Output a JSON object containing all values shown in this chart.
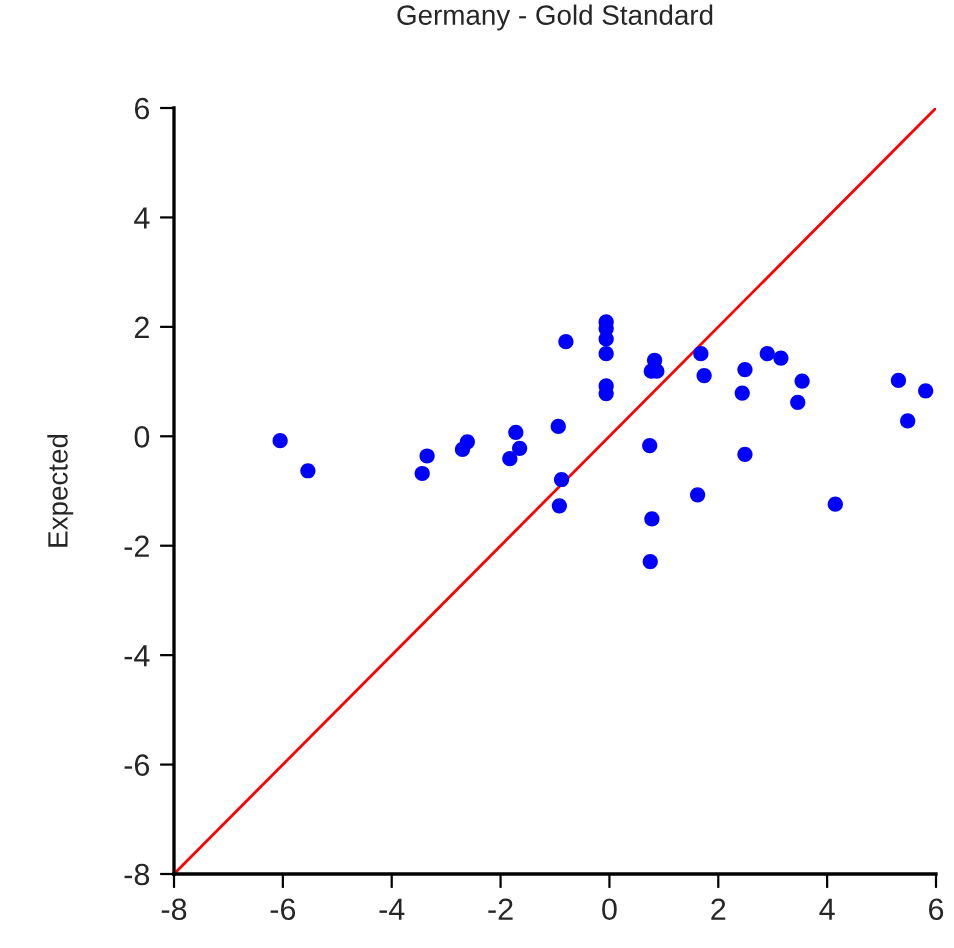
{
  "chart_data": {
    "type": "scatter",
    "title": "Germany - Gold Standard",
    "ylabel": "Expected",
    "xlim": [
      -8,
      6
    ],
    "ylim": [
      -8,
      6
    ],
    "xticks": [
      -8,
      -6,
      -4,
      -2,
      0,
      2,
      4,
      6
    ],
    "yticks": [
      -8,
      -6,
      -4,
      -2,
      0,
      2,
      4,
      6
    ],
    "grid": false,
    "marker": "circle",
    "series": [
      {
        "color": "#0000ff",
        "x": [
          -6.05,
          -5.54,
          -3.35,
          -3.44,
          -2.7,
          -2.61,
          -1.72,
          -1.65,
          -1.83,
          -0.94,
          -0.8,
          -0.88,
          -0.92,
          -0.06,
          -0.06,
          -0.06,
          -0.06,
          -0.06,
          -0.06,
          0.74,
          0.83,
          0.77,
          0.87,
          1.68,
          1.74,
          2.49,
          2.44,
          2.49,
          2.9,
          3.15,
          3.54,
          3.46,
          1.62,
          4.15,
          5.31,
          5.81,
          5.48,
          0.78,
          0.75
        ],
        "values": [
          -0.08,
          -0.63,
          -0.36,
          -0.68,
          -0.24,
          -0.1,
          0.07,
          -0.22,
          -0.41,
          0.18,
          1.73,
          -0.79,
          -1.27,
          2.09,
          1.97,
          1.78,
          1.51,
          0.92,
          0.78,
          -0.17,
          1.39,
          1.19,
          1.19,
          1.51,
          1.11,
          1.22,
          0.79,
          -0.33,
          1.51,
          1.43,
          1.01,
          0.62,
          -1.07,
          -1.24,
          1.02,
          0.83,
          0.28,
          -1.51,
          -2.29
        ]
      },
      {
        "type": "line",
        "color": "#ff0000",
        "x": [
          -8,
          6
        ],
        "values": [
          -8,
          6
        ],
        "marker": "none",
        "line_style": "solid"
      }
    ]
  }
}
